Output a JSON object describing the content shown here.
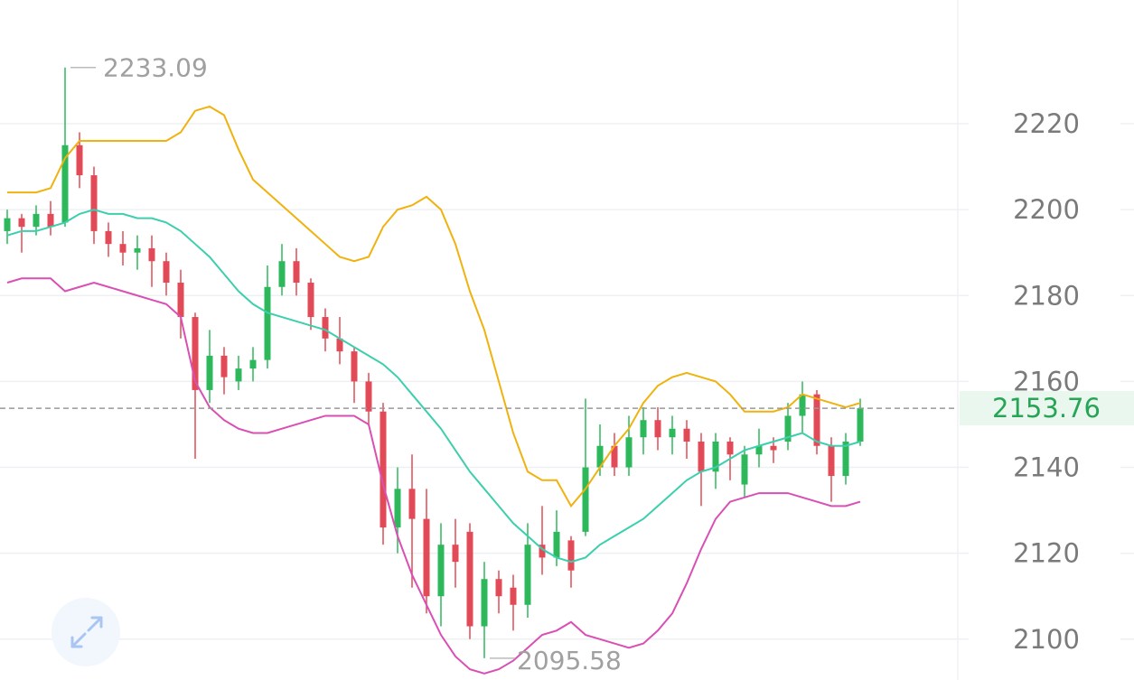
{
  "chart_data": {
    "type": "candlestick",
    "open": [
      2195,
      2198,
      2196,
      2199,
      2197,
      2215,
      2208,
      2195,
      2192,
      2190,
      2191,
      2188,
      2183,
      2175,
      2158,
      2166,
      2160,
      2163,
      2165,
      2182,
      2188,
      2183,
      2175,
      2170,
      2167,
      2160,
      2153,
      2126,
      2135,
      2128,
      2110,
      2122,
      2125,
      2103,
      2114,
      2112,
      2108,
      2122,
      2119,
      2123,
      2125,
      2140,
      2145,
      2140,
      2147,
      2151,
      2147,
      2149,
      2146,
      2139,
      2146,
      2136,
      2143,
      2145,
      2146,
      2152,
      2157,
      2145,
      2138,
      2146
    ],
    "high": [
      2200,
      2199,
      2201,
      2202,
      2233.09,
      2218,
      2210,
      2197,
      2195,
      2194,
      2194,
      2190,
      2186,
      2176,
      2172,
      2168,
      2166,
      2168,
      2187,
      2192,
      2191,
      2184,
      2177,
      2175,
      2168,
      2162,
      2155,
      2140,
      2143,
      2135,
      2127,
      2128,
      2127,
      2118,
      2116,
      2115,
      2127,
      2131,
      2130,
      2124,
      2156,
      2150,
      2148,
      2152,
      2154,
      2154,
      2152,
      2151,
      2148,
      2148,
      2147,
      2145,
      2149,
      2147,
      2155,
      2160,
      2158,
      2147,
      2148,
      2156
    ],
    "low": [
      2192,
      2190,
      2194,
      2194,
      2196,
      2205,
      2192,
      2189,
      2187,
      2186,
      2182,
      2180,
      2170,
      2142,
      2155,
      2157,
      2158,
      2160,
      2163,
      2180,
      2180,
      2172,
      2167,
      2164,
      2155,
      2150,
      2122,
      2120,
      2112,
      2106,
      2103,
      2112,
      2100,
      2095.58,
      2106,
      2102,
      2105,
      2115,
      2117,
      2112,
      2124,
      2138,
      2138,
      2138,
      2143,
      2144,
      2143,
      2142,
      2131,
      2135,
      2137,
      2133,
      2140,
      2141,
      2144,
      2148,
      2143,
      2132,
      2136,
      2145
    ],
    "close": [
      2198,
      2196,
      2199,
      2196,
      2215,
      2208,
      2195,
      2192,
      2190,
      2191,
      2188,
      2183,
      2175,
      2158,
      2166,
      2161,
      2163,
      2165,
      2182,
      2188,
      2183,
      2175,
      2170,
      2167,
      2160,
      2153,
      2126,
      2135,
      2128,
      2110,
      2122,
      2118,
      2103,
      2114,
      2110,
      2108,
      2122,
      2119,
      2125,
      2116,
      2140,
      2145,
      2140,
      2147,
      2151,
      2147,
      2149,
      2146,
      2139,
      2146,
      2143,
      2143,
      2145,
      2144,
      2152,
      2157,
      2145,
      2138,
      2146,
      2153.76
    ],
    "up_color": "#2eb85c",
    "down_color": "#e24a57",
    "bands": [
      {
        "color": "#f0b20e",
        "values": [
          2204,
          2204,
          2204,
          2205,
          2212,
          2216,
          2216,
          2216,
          2216,
          2216,
          2216,
          2216,
          2218,
          2223,
          2224,
          2222,
          2214,
          2207,
          2204,
          2201,
          2198,
          2195,
          2192,
          2189,
          2188,
          2189,
          2196,
          2200,
          2201,
          2203,
          2200,
          2192,
          2181,
          2172,
          2160,
          2148,
          2139,
          2137,
          2137,
          2131,
          2135,
          2140,
          2145,
          2149,
          2155,
          2159,
          2161,
          2162,
          2161,
          2160,
          2157,
          2153,
          2153,
          2153,
          2154,
          2157,
          2156,
          2155,
          2154,
          2155
        ]
      },
      {
        "color": "#3ccfae",
        "values": [
          2194,
          2195,
          2195,
          2196,
          2197,
          2199,
          2200,
          2199,
          2199,
          2198,
          2198,
          2197,
          2195,
          2192,
          2189,
          2185,
          2181,
          2178,
          2176,
          2175,
          2174,
          2173,
          2172,
          2170,
          2168,
          2166,
          2164,
          2161,
          2157,
          2153,
          2149,
          2144,
          2139,
          2135,
          2131,
          2127,
          2124,
          2121,
          2119,
          2118,
          2119,
          2122,
          2124,
          2126,
          2128,
          2131,
          2134,
          2137,
          2139,
          2140,
          2142,
          2144,
          2145,
          2146,
          2147,
          2148,
          2146,
          2145,
          2145,
          2146
        ]
      },
      {
        "color": "#d94fb4",
        "values": [
          2183,
          2184,
          2184,
          2184,
          2181,
          2182,
          2183,
          2182,
          2181,
          2180,
          2179,
          2178,
          2175,
          2160,
          2154,
          2151,
          2149,
          2148,
          2148,
          2149,
          2150,
          2151,
          2152,
          2152,
          2152,
          2150,
          2136,
          2124,
          2115,
          2108,
          2101,
          2096,
          2093,
          2092,
          2093,
          2095,
          2098,
          2101,
          2102,
          2104,
          2101,
          2100,
          2099,
          2098,
          2099,
          2102,
          2106,
          2113,
          2121,
          2128,
          2132,
          2133,
          2134,
          2134,
          2134,
          2133,
          2132,
          2131,
          2131,
          2132
        ]
      }
    ],
    "ylim": [
      2090.5,
      2248.8
    ],
    "yticks": [
      2100,
      2120,
      2140,
      2160,
      2180,
      2200,
      2220
    ],
    "grid": true
  }
}
